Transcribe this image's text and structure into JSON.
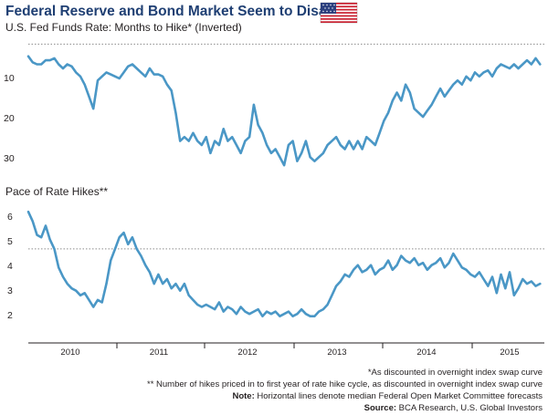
{
  "title": "Federal Reserve and Bond Market Seem to Disagree",
  "flag_icon": "us-flag-icon",
  "colors": {
    "title": "#1f3f73",
    "line": "#4a97c6",
    "median_line": "#8c8c8c",
    "axis": "#231f20"
  },
  "footnotes": {
    "note1": "*As discounted in overnight index swap curve",
    "note2": "** Number of hikes priced in to first year of rate hike cycle, as discounted in overnight index swap curve",
    "note3_label": "Note:",
    "note3_text": " Horizontal lines denote median Federal Open Market Committee forecasts",
    "source_label": "Source:",
    "source_text": " BCA Research, U.S. Global Investors"
  },
  "chart_data": [
    {
      "type": "line",
      "title": "U.S. Fed Funds Rate: Months to Hike* (Inverted)",
      "xlabel": "",
      "ylabel": "",
      "inverted_y": true,
      "xlim": [
        2009.5,
        2015.45
      ],
      "ylim": [
        2,
        35
      ],
      "yticks": [
        10,
        20,
        30
      ],
      "xticks": [
        "2010",
        "2011",
        "2012",
        "2013",
        "2014",
        "2015"
      ],
      "median_line_value": 3,
      "grid": false,
      "series": [
        {
          "x": [
            2009.5,
            2009.55,
            2009.6,
            2009.65,
            2009.7,
            2009.75,
            2009.8,
            2009.85,
            2009.9,
            2009.95,
            2010.0,
            2010.05,
            2010.1,
            2010.15,
            2010.2,
            2010.25,
            2010.3,
            2010.35,
            2010.4,
            2010.45,
            2010.5,
            2010.55,
            2010.6,
            2010.65,
            2010.7,
            2010.75,
            2010.8,
            2010.85,
            2010.9,
            2010.95,
            2011.0,
            2011.05,
            2011.1,
            2011.15,
            2011.2,
            2011.25,
            2011.3,
            2011.35,
            2011.4,
            2011.45,
            2011.5,
            2011.55,
            2011.6,
            2011.65,
            2011.7,
            2011.75,
            2011.8,
            2011.85,
            2011.9,
            2011.95,
            2012.0,
            2012.05,
            2012.1,
            2012.15,
            2012.2,
            2012.25,
            2012.3,
            2012.35,
            2012.4,
            2012.45,
            2012.5,
            2012.55,
            2012.6,
            2012.65,
            2012.7,
            2012.75,
            2012.8,
            2012.85,
            2012.9,
            2012.95,
            2013.0,
            2013.05,
            2013.1,
            2013.15,
            2013.2,
            2013.25,
            2013.3,
            2013.35,
            2013.4,
            2013.45,
            2013.5,
            2013.55,
            2013.6,
            2013.65,
            2013.7,
            2013.75,
            2013.8,
            2013.85,
            2013.9,
            2013.95,
            2014.0,
            2014.05,
            2014.1,
            2014.15,
            2014.2,
            2014.25,
            2014.3,
            2014.35,
            2014.4,
            2014.45,
            2014.5,
            2014.55,
            2014.6,
            2014.65,
            2014.7,
            2014.75,
            2014.8,
            2014.85,
            2014.9,
            2014.95,
            2015.0,
            2015.05,
            2015.1,
            2015.15,
            2015.2,
            2015.25,
            2015.3,
            2015.35,
            2015.4
          ],
          "values": [
            6,
            7.5,
            8,
            8,
            7,
            7,
            6.5,
            8,
            9,
            8,
            8.5,
            10,
            11,
            13,
            16,
            19,
            12,
            11,
            10,
            10.5,
            11,
            11.5,
            10,
            8.5,
            8,
            9,
            10,
            11,
            9,
            10.5,
            10.5,
            11,
            13,
            14.5,
            20,
            27,
            26,
            27,
            25,
            27,
            28,
            26,
            30,
            27,
            28,
            24,
            27,
            26,
            28,
            30,
            27,
            26,
            18,
            23,
            25,
            28,
            30,
            29,
            31,
            33,
            28,
            27,
            32,
            30,
            27,
            31,
            32,
            31,
            30,
            28,
            27,
            26,
            28,
            29,
            27,
            29,
            27,
            29,
            26,
            27,
            28,
            25,
            22,
            20,
            17,
            15,
            17,
            13,
            15,
            19,
            20,
            21,
            19.5,
            18,
            16,
            14,
            16,
            14.5,
            13,
            12,
            13,
            11,
            12,
            10,
            11,
            10,
            9.5,
            11,
            9,
            8,
            8.5,
            9,
            8,
            9,
            8,
            7,
            8,
            6.5,
            8
          ]
        }
      ]
    },
    {
      "type": "line",
      "title": "Pace of Rate Hikes**",
      "xlabel": "",
      "ylabel": "",
      "xlim": [
        2009.5,
        2015.45
      ],
      "ylim": [
        1,
        6.5
      ],
      "yticks": [
        2,
        3,
        4,
        5,
        6
      ],
      "xticks": [
        "2010",
        "2011",
        "2012",
        "2013",
        "2014",
        "2015"
      ],
      "median_line_value": 4.5,
      "grid": false,
      "series": [
        {
          "x": [
            2009.5,
            2009.55,
            2009.6,
            2009.65,
            2009.7,
            2009.75,
            2009.8,
            2009.85,
            2009.9,
            2009.95,
            2010.0,
            2010.05,
            2010.1,
            2010.15,
            2010.2,
            2010.25,
            2010.3,
            2010.35,
            2010.4,
            2010.45,
            2010.5,
            2010.55,
            2010.6,
            2010.65,
            2010.7,
            2010.75,
            2010.8,
            2010.85,
            2010.9,
            2010.95,
            2011.0,
            2011.05,
            2011.1,
            2011.15,
            2011.2,
            2011.25,
            2011.3,
            2011.35,
            2011.4,
            2011.45,
            2011.5,
            2011.55,
            2011.6,
            2011.65,
            2011.7,
            2011.75,
            2011.8,
            2011.85,
            2011.9,
            2011.95,
            2012.0,
            2012.05,
            2012.1,
            2012.15,
            2012.2,
            2012.25,
            2012.3,
            2012.35,
            2012.4,
            2012.45,
            2012.5,
            2012.55,
            2012.6,
            2012.65,
            2012.7,
            2012.75,
            2012.8,
            2012.85,
            2012.9,
            2012.95,
            2013.0,
            2013.05,
            2013.1,
            2013.15,
            2013.2,
            2013.25,
            2013.3,
            2013.35,
            2013.4,
            2013.45,
            2013.5,
            2013.55,
            2013.6,
            2013.65,
            2013.7,
            2013.75,
            2013.8,
            2013.85,
            2013.9,
            2013.95,
            2014.0,
            2014.05,
            2014.1,
            2014.15,
            2014.2,
            2014.25,
            2014.3,
            2014.35,
            2014.4,
            2014.45,
            2014.5,
            2014.55,
            2014.6,
            2014.65,
            2014.7,
            2014.75,
            2014.8,
            2014.85,
            2014.9,
            2014.95,
            2015.0,
            2015.05,
            2015.1,
            2015.15,
            2015.2,
            2015.25,
            2015.3,
            2015.35,
            2015.4
          ],
          "values": [
            6.1,
            5.7,
            5.1,
            5.0,
            5.5,
            4.9,
            4.5,
            3.7,
            3.3,
            3.0,
            2.8,
            2.7,
            2.5,
            2.6,
            2.3,
            2.0,
            2.3,
            2.2,
            3.0,
            4.0,
            4.5,
            5.0,
            5.2,
            4.7,
            5.0,
            4.5,
            4.2,
            3.8,
            3.5,
            3.0,
            3.4,
            3.0,
            3.2,
            2.8,
            3.0,
            2.7,
            3.0,
            2.5,
            2.3,
            2.1,
            2.0,
            2.1,
            2.0,
            1.9,
            2.2,
            1.8,
            2.0,
            1.9,
            1.7,
            2.0,
            1.8,
            1.7,
            1.8,
            1.9,
            1.6,
            1.8,
            1.7,
            1.8,
            1.6,
            1.7,
            1.8,
            1.6,
            1.7,
            1.9,
            1.7,
            1.6,
            1.6,
            1.8,
            1.9,
            2.1,
            2.5,
            2.9,
            3.1,
            3.4,
            3.3,
            3.6,
            3.8,
            3.5,
            3.6,
            3.8,
            3.4,
            3.6,
            3.7,
            4.0,
            3.6,
            3.8,
            4.2,
            4.0,
            3.9,
            4.1,
            3.8,
            3.9,
            3.6,
            3.8,
            3.9,
            4.1,
            3.7,
            3.9,
            4.3,
            4.0,
            3.7,
            3.6,
            3.4,
            3.3,
            3.5,
            3.2,
            2.9,
            3.3,
            2.6,
            3.4,
            2.8,
            3.5,
            2.5,
            2.8,
            3.2,
            3.0,
            3.1,
            2.9,
            3.0
          ]
        }
      ]
    }
  ]
}
